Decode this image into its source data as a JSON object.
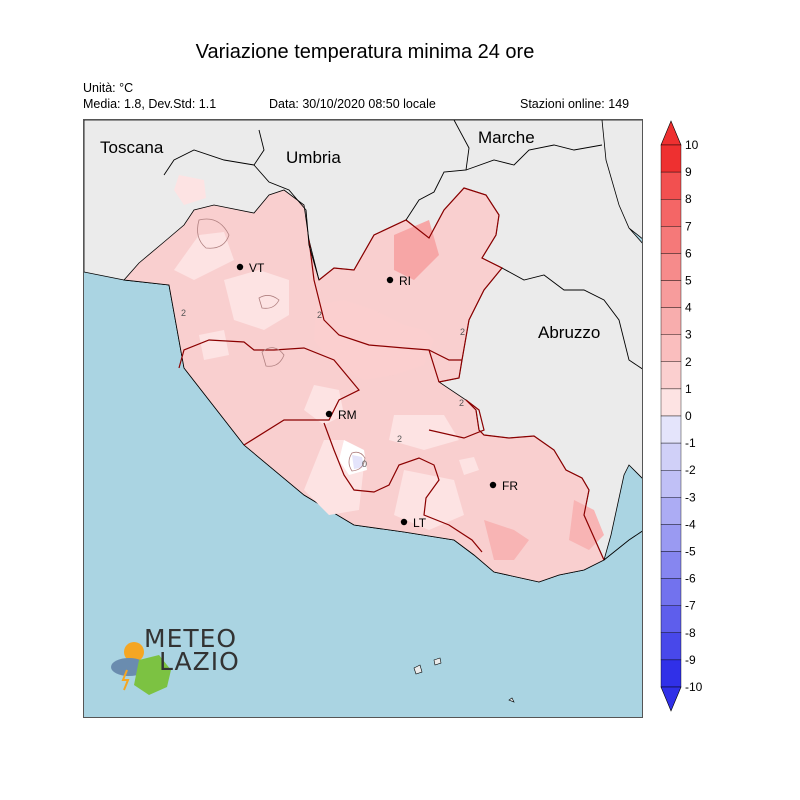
{
  "title": "Variazione temperatura minima 24 ore",
  "info": {
    "units": "Unità: °C",
    "stats": "Media: 1.8, Dev.Std: 1.1",
    "date": "Data: 30/10/2020 08:50 locale",
    "stations": "Stazioni online: 149"
  },
  "regions": {
    "toscana": "Toscana",
    "umbria": "Umbria",
    "marche": "Marche",
    "abruzzo": "Abruzzo"
  },
  "cities": [
    {
      "code": "VT"
    },
    {
      "code": "RI"
    },
    {
      "code": "RM"
    },
    {
      "code": "FR"
    },
    {
      "code": "LT"
    }
  ],
  "contour_labels": [
    "2",
    "2",
    "2",
    "2",
    "2",
    "0"
  ],
  "colorbar": {
    "ticks": [
      "10",
      "9",
      "8",
      "7",
      "6",
      "5",
      "4",
      "3",
      "2",
      "1",
      "0",
      "-1",
      "-2",
      "-3",
      "-4",
      "-5",
      "-6",
      "-7",
      "-8",
      "-9",
      "-10"
    ],
    "colors": [
      "#ee3030",
      "#f25050",
      "#f46666",
      "#f57979",
      "#f68b8b",
      "#f79c9c",
      "#f8adad",
      "#fabebe",
      "#fbcfcf",
      "#fde3e3",
      "#ffffff",
      "#e4e4fb",
      "#d0d0f8",
      "#c0c0f6",
      "#acacf4",
      "#9a9af2",
      "#8686f0",
      "#7272ee",
      "#5e5eec",
      "#4848ea",
      "#3030e8"
    ]
  },
  "colors": {
    "sea": "#aad4e2",
    "land_outside": "#ebebeb",
    "lazio_base": "#f9cfcf",
    "region_border": "#8b0000"
  },
  "logo": {
    "line1": "METEO",
    "line2": "LAZIO"
  }
}
